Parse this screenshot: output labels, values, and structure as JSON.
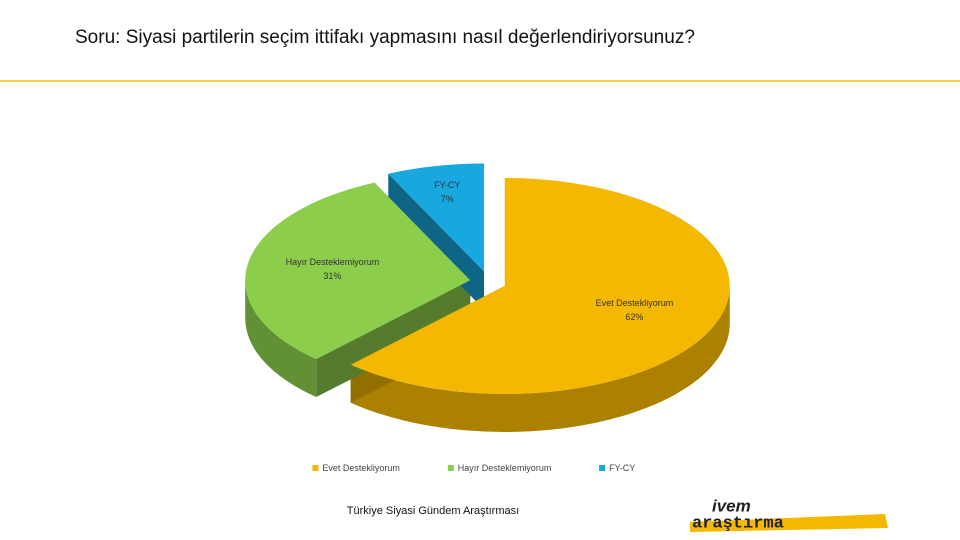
{
  "chart_data": {
    "type": "pie",
    "title": "Soru: Siyasi partilerin seçim ittifakı yapmasını nasıl değerlendiriyorsunuz?",
    "categories": [
      "Evet Destekliyorum",
      "Hayır Desteklemiyorum",
      "FY-CY"
    ],
    "values": [
      62,
      31,
      7
    ],
    "value_labels": [
      "62%",
      "31%",
      "7%"
    ],
    "colors": [
      "#f5b800",
      "#8ccd4c",
      "#17a8e0"
    ],
    "legend": "bottom"
  },
  "footer": {
    "text": "Türkiye Siyasi Gündem Araştırması",
    "logo_top": "ivem",
    "logo_bottom": "araştırma"
  }
}
